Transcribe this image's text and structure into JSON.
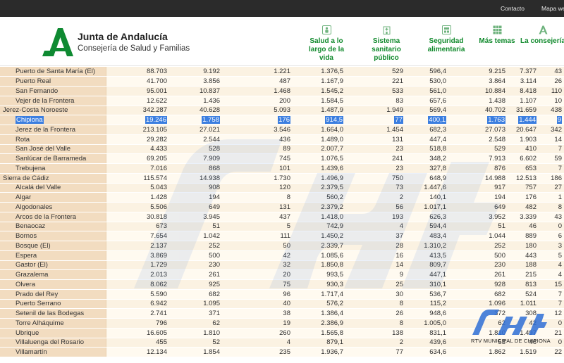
{
  "topbar": {
    "links": [
      "Contacto",
      "Mapa web"
    ]
  },
  "header": {
    "brand": "Junta de Andalucía",
    "subtitle": "Consejería de Salud y Familias",
    "nav": [
      {
        "label": "Salud a lo largo de la vida",
        "icon": "child-icon"
      },
      {
        "label": "Sistema sanitario público",
        "icon": "hospital-icon"
      },
      {
        "label": "Seguridad alimentaria",
        "icon": "food-safety-icon"
      },
      {
        "label": "Más temas",
        "icon": "grid-icon"
      },
      {
        "label": "La consejería",
        "icon": "consejeria-logo-icon"
      }
    ],
    "colors": {
      "nav_green": "#118a2d",
      "topbar": "#2b2b2b"
    }
  },
  "table": {
    "rows": [
      {
        "name": "Puerto de Santa María (El)",
        "level": "municipio",
        "values": [
          "88.703",
          "9.192",
          "1.221",
          "1.376,5",
          "529",
          "596,4",
          "9.215",
          "7.377",
          "43"
        ]
      },
      {
        "name": "Puerto Real",
        "level": "municipio",
        "values": [
          "41.700",
          "3.856",
          "487",
          "1.167,9",
          "221",
          "530,0",
          "3.864",
          "3.114",
          "26"
        ]
      },
      {
        "name": "San Fernando",
        "level": "municipio",
        "values": [
          "95.001",
          "10.837",
          "1.468",
          "1.545,2",
          "533",
          "561,0",
          "10.884",
          "8.418",
          "110"
        ]
      },
      {
        "name": "Vejer de la Frontera",
        "level": "municipio",
        "values": [
          "12.622",
          "1.436",
          "200",
          "1.584,5",
          "83",
          "657,6",
          "1.438",
          "1.107",
          "10"
        ]
      },
      {
        "name": "Jerez-Costa Noroeste",
        "level": "distrito",
        "values": [
          "342.287",
          "40.628",
          "5.093",
          "1.487,9",
          "1.949",
          "569,4",
          "40.702",
          "31.659",
          "438"
        ]
      },
      {
        "name": "Chipiona",
        "level": "municipio",
        "selected": true,
        "values": [
          "19.246",
          "1.758",
          "176",
          "914,5",
          "77",
          "400,1",
          "1.763",
          "1.444",
          "9"
        ]
      },
      {
        "name": "Jerez de la Frontera",
        "level": "municipio",
        "values": [
          "213.105",
          "27.021",
          "3.546",
          "1.664,0",
          "1.454",
          "682,3",
          "27.073",
          "20.647",
          "342"
        ]
      },
      {
        "name": "Rota",
        "level": "municipio",
        "values": [
          "29.282",
          "2.544",
          "436",
          "1.489,0",
          "131",
          "447,4",
          "2.548",
          "1.903",
          "14"
        ]
      },
      {
        "name": "San José del Valle",
        "level": "municipio",
        "values": [
          "4.433",
          "528",
          "89",
          "2.007,7",
          "23",
          "518,8",
          "529",
          "410",
          "7"
        ]
      },
      {
        "name": "Sanlúcar de Barrameda",
        "level": "municipio",
        "values": [
          "69.205",
          "7.909",
          "745",
          "1.076,5",
          "241",
          "348,2",
          "7.913",
          "6.602",
          "59"
        ]
      },
      {
        "name": "Trebujena",
        "level": "municipio",
        "values": [
          "7.016",
          "868",
          "101",
          "1.439,6",
          "23",
          "327,8",
          "876",
          "653",
          "7"
        ]
      },
      {
        "name": "Sierra de Cádiz",
        "level": "distrito",
        "values": [
          "115.574",
          "14.938",
          "1.730",
          "1.496,9",
          "750",
          "648,9",
          "14.988",
          "12.513",
          "186"
        ]
      },
      {
        "name": "Alcalá del Valle",
        "level": "municipio",
        "values": [
          "5.043",
          "908",
          "120",
          "2.379,5",
          "73",
          "1.447,6",
          "917",
          "757",
          "27"
        ]
      },
      {
        "name": "Algar",
        "level": "municipio",
        "values": [
          "1.428",
          "194",
          "8",
          "560,2",
          "2",
          "140,1",
          "194",
          "176",
          "1"
        ]
      },
      {
        "name": "Algodonales",
        "level": "municipio",
        "values": [
          "5.506",
          "649",
          "131",
          "2.379,2",
          "56",
          "1.017,1",
          "649",
          "482",
          "8"
        ]
      },
      {
        "name": "Arcos de la Frontera",
        "level": "municipio",
        "values": [
          "30.818",
          "3.945",
          "437",
          "1.418,0",
          "193",
          "626,3",
          "3.952",
          "3.339",
          "43"
        ]
      },
      {
        "name": "Benaocaz",
        "level": "municipio",
        "values": [
          "673",
          "51",
          "5",
          "742,9",
          "4",
          "594,4",
          "51",
          "46",
          "0"
        ]
      },
      {
        "name": "Bornos",
        "level": "municipio",
        "values": [
          "7.654",
          "1.042",
          "111",
          "1.450,2",
          "37",
          "483,4",
          "1.044",
          "889",
          "6"
        ]
      },
      {
        "name": "Bosque (El)",
        "level": "municipio",
        "values": [
          "2.137",
          "252",
          "50",
          "2.339,7",
          "28",
          "1.310,2",
          "252",
          "180",
          "3"
        ]
      },
      {
        "name": "Espera",
        "level": "municipio",
        "values": [
          "3.869",
          "500",
          "42",
          "1.085,6",
          "16",
          "413,5",
          "500",
          "443",
          "5"
        ]
      },
      {
        "name": "Gastor (El)",
        "level": "municipio",
        "values": [
          "1.729",
          "230",
          "32",
          "1.850,8",
          "14",
          "809,7",
          "230",
          "188",
          "4"
        ]
      },
      {
        "name": "Grazalema",
        "level": "municipio",
        "values": [
          "2.013",
          "261",
          "20",
          "993,5",
          "9",
          "447,1",
          "261",
          "215",
          "4"
        ]
      },
      {
        "name": "Olvera",
        "level": "municipio",
        "values": [
          "8.062",
          "925",
          "75",
          "930,3",
          "25",
          "310,1",
          "928",
          "813",
          "15"
        ]
      },
      {
        "name": "Prado del Rey",
        "level": "municipio",
        "values": [
          "5.590",
          "682",
          "96",
          "1.717,4",
          "30",
          "536,7",
          "682",
          "524",
          "7"
        ]
      },
      {
        "name": "Puerto Serrano",
        "level": "municipio",
        "values": [
          "6.942",
          "1.095",
          "40",
          "576,2",
          "8",
          "115,2",
          "1.096",
          "1.011",
          "7"
        ]
      },
      {
        "name": "Setenil de las Bodegas",
        "level": "municipio",
        "values": [
          "2.741",
          "371",
          "38",
          "1.386,4",
          "26",
          "948,6",
          "372",
          "308",
          "12"
        ]
      },
      {
        "name": "Torre Alháquime",
        "level": "municipio",
        "values": [
          "796",
          "62",
          "19",
          "2.386,9",
          "8",
          "1.005,0",
          "62",
          "42",
          "0"
        ]
      },
      {
        "name": "Ubrique",
        "level": "municipio",
        "values": [
          "16.605",
          "1.810",
          "260",
          "1.565,8",
          "138",
          "831,1",
          "1.810",
          "1.497",
          "21"
        ]
      },
      {
        "name": "Villaluenga del Rosario",
        "level": "municipio",
        "values": [
          "455",
          "52",
          "4",
          "879,1",
          "2",
          "439,6",
          "53",
          "46",
          "0"
        ]
      },
      {
        "name": "Villamartín",
        "level": "municipio",
        "values": [
          "12.134",
          "1.854",
          "235",
          "1.936,7",
          "77",
          "634,6",
          "1.862",
          "1.519",
          "22"
        ]
      }
    ]
  },
  "watermark": {
    "caption": "RTV MUNICIPAL DE CHIPIONA",
    "color": "#2f6fd6"
  }
}
